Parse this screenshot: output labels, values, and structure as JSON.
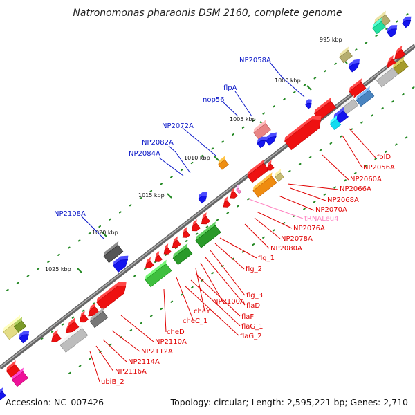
{
  "title": "Natronomonas pharaonis DSM 2160, complete genome",
  "footer": {
    "accession": "Accession: NC_007426",
    "summary": "Topology: circular; Length: 2,595,221 bp; Genes: 2,710"
  },
  "ruler": [
    "995 kbp",
    "1000 kbp",
    "1005 kbp",
    "1010 kbp",
    "1015 kbp",
    "1020 kbp",
    "1025 kbp"
  ],
  "colors": {
    "backbone": "#7a7a7a",
    "blue_label": "#0b18c8",
    "red_label": "#e00000",
    "pink_label": "#ff7fbf",
    "tick": "#228822"
  },
  "upper_labels": [
    "NP2058A",
    "flpA",
    "nop56",
    "NP2072A",
    "NP2082A",
    "NP2084A",
    "NP2108A"
  ],
  "lower_labels": [
    "folD",
    "NP2056A",
    "NP2060A",
    "NP2066A",
    "NP2068A",
    "NP2070A",
    "tRNALeu4",
    "NP2076A",
    "NP2078A",
    "NP2080A",
    "flg_1",
    "flg_2",
    "flg_3",
    "flaD",
    "NP2100A",
    "cheY",
    "flaF",
    "cheC_1",
    "flaG_1",
    "flaG_2",
    "cheD",
    "NP2110A",
    "NP2112A",
    "NP2114A",
    "NP2116A",
    "ubiB_2"
  ]
}
